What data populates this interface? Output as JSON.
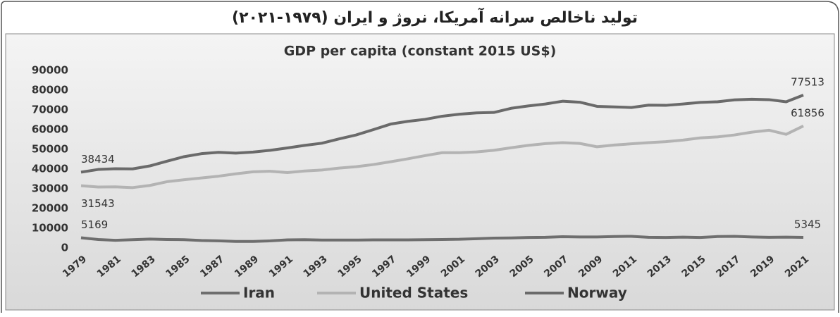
{
  "header": {
    "title": "تولید ناخالص سرانه آمریکا، نروژ و ایران (۱۹۷۹-۲۰۲۱)"
  },
  "chart_data": {
    "type": "line",
    "title": "GDP per capita (constant 2015 US$)",
    "x": [
      1979,
      1980,
      1981,
      1982,
      1983,
      1984,
      1985,
      1986,
      1987,
      1988,
      1989,
      1990,
      1991,
      1992,
      1993,
      1994,
      1995,
      1996,
      1997,
      1998,
      1999,
      2000,
      2001,
      2002,
      2003,
      2004,
      2005,
      2006,
      2007,
      2008,
      2009,
      2010,
      2011,
      2012,
      2013,
      2014,
      2015,
      2016,
      2017,
      2018,
      2019,
      2020,
      2021
    ],
    "xlim": [
      1979,
      2021
    ],
    "xticks": [
      1979,
      1981,
      1983,
      1985,
      1987,
      1989,
      1991,
      1993,
      1995,
      1997,
      1999,
      2001,
      2003,
      2005,
      2007,
      2009,
      2011,
      2013,
      2015,
      2017,
      2019,
      2021
    ],
    "ylim": [
      0,
      90000
    ],
    "yticks": [
      0,
      10000,
      20000,
      30000,
      40000,
      50000,
      60000,
      70000,
      80000,
      90000
    ],
    "grid": false,
    "legend": "bottom",
    "label_points": [
      0,
      42
    ],
    "series": [
      {
        "name": "Iran",
        "color": "#6e6e6e",
        "values": [
          5169,
          4300,
          3900,
          4200,
          4500,
          4300,
          4200,
          3800,
          3600,
          3300,
          3300,
          3600,
          4100,
          4200,
          4000,
          4000,
          4000,
          4100,
          4100,
          4100,
          4200,
          4300,
          4400,
          4700,
          5000,
          5100,
          5300,
          5400,
          5700,
          5600,
          5600,
          5800,
          5900,
          5400,
          5300,
          5500,
          5300,
          5800,
          5900,
          5600,
          5400,
          5500,
          5345
        ]
      },
      {
        "name": "United States",
        "color": "#b3b3b3",
        "values": [
          31543,
          30900,
          31000,
          30600,
          31700,
          33600,
          34600,
          35500,
          36400,
          37600,
          38600,
          38900,
          38200,
          39000,
          39500,
          40500,
          41200,
          42300,
          43700,
          45200,
          46800,
          48300,
          48300,
          48700,
          49500,
          50800,
          52000,
          52900,
          53400,
          53000,
          51300,
          52200,
          52800,
          53400,
          53900,
          54700,
          55800,
          56300,
          57300,
          58700,
          59700,
          57600,
          61856
        ]
      },
      {
        "name": "Norway",
        "color": "#6a6a6a",
        "values": [
          38434,
          39800,
          40200,
          40100,
          41600,
          44000,
          46300,
          47800,
          48500,
          48100,
          48600,
          49500,
          50700,
          52000,
          53100,
          55300,
          57300,
          60000,
          62800,
          64200,
          65200,
          66800,
          67800,
          68500,
          68700,
          70800,
          72000,
          73000,
          74400,
          73900,
          71800,
          71500,
          71200,
          72400,
          72300,
          73000,
          73800,
          74100,
          75100,
          75400,
          75200,
          74100,
          77513
        ]
      }
    ]
  }
}
